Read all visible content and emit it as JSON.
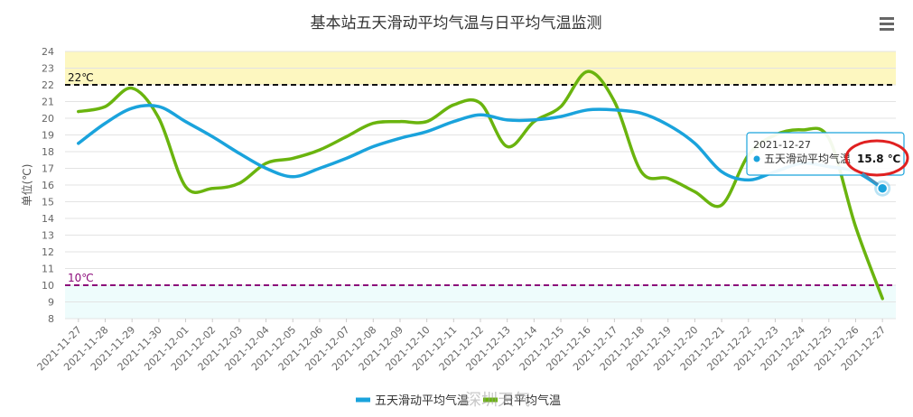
{
  "chart_data": {
    "type": "line",
    "title": "基本站五天滑动平均气温与日平均气温监测",
    "ylabel": "单位(℃)",
    "xlabel": "",
    "ylim": [
      8,
      24
    ],
    "yticks": [
      8,
      9,
      10,
      11,
      12,
      13,
      14,
      15,
      16,
      17,
      18,
      19,
      20,
      21,
      22,
      23,
      24
    ],
    "categories": [
      "2021-11-27",
      "2021-11-28",
      "2021-11-29",
      "2021-11-30",
      "2021-12-01",
      "2021-12-02",
      "2021-12-03",
      "2021-12-04",
      "2021-12-05",
      "2021-12-06",
      "2021-12-07",
      "2021-12-08",
      "2021-12-09",
      "2021-12-10",
      "2021-12-11",
      "2021-12-12",
      "2021-12-13",
      "2021-12-14",
      "2021-12-15",
      "2021-12-16",
      "2021-12-17",
      "2021-12-18",
      "2021-12-19",
      "2021-12-20",
      "2021-12-21",
      "2021-12-22",
      "2021-12-23",
      "2021-12-24",
      "2021-12-25",
      "2021-12-26",
      "2021-12-27"
    ],
    "series": [
      {
        "name": "五天滑动平均气温",
        "color": "#1aa3dc",
        "values": [
          18.5,
          19.7,
          20.6,
          20.7,
          19.8,
          18.9,
          17.9,
          17.0,
          16.5,
          17.0,
          17.6,
          18.3,
          18.8,
          19.2,
          19.8,
          20.2,
          19.9,
          19.9,
          20.1,
          20.5,
          20.5,
          20.3,
          19.6,
          18.5,
          16.8,
          16.3,
          16.8,
          17.3,
          17.1,
          16.8,
          15.8
        ]
      },
      {
        "name": "日平均气温",
        "color": "#6ab40e",
        "values": [
          20.4,
          20.7,
          21.8,
          20.0,
          15.9,
          15.8,
          16.1,
          17.3,
          17.6,
          18.1,
          18.9,
          19.7,
          19.8,
          19.8,
          20.8,
          20.9,
          18.3,
          19.8,
          20.7,
          22.8,
          21.0,
          16.8,
          16.4,
          15.6,
          14.8,
          17.8,
          19.0,
          19.3,
          18.8,
          13.5,
          9.2
        ]
      }
    ],
    "bands": [
      {
        "from": 22,
        "to": 24,
        "color": "#fdf7c0"
      },
      {
        "from": 8,
        "to": 10,
        "color": "#eefcfc"
      }
    ],
    "plot_lines": [
      {
        "value": 22,
        "label": "22℃",
        "color": "#111111"
      },
      {
        "value": 10,
        "label": "10℃",
        "color": "#8b0a7a"
      }
    ],
    "grid": true,
    "legend_position": "bottom-center",
    "tooltip": {
      "date": "2021-12-27",
      "series": "五天滑动平均气温",
      "value": "15.8 ℃",
      "category_index": 30
    },
    "watermark": "深圳天气"
  }
}
